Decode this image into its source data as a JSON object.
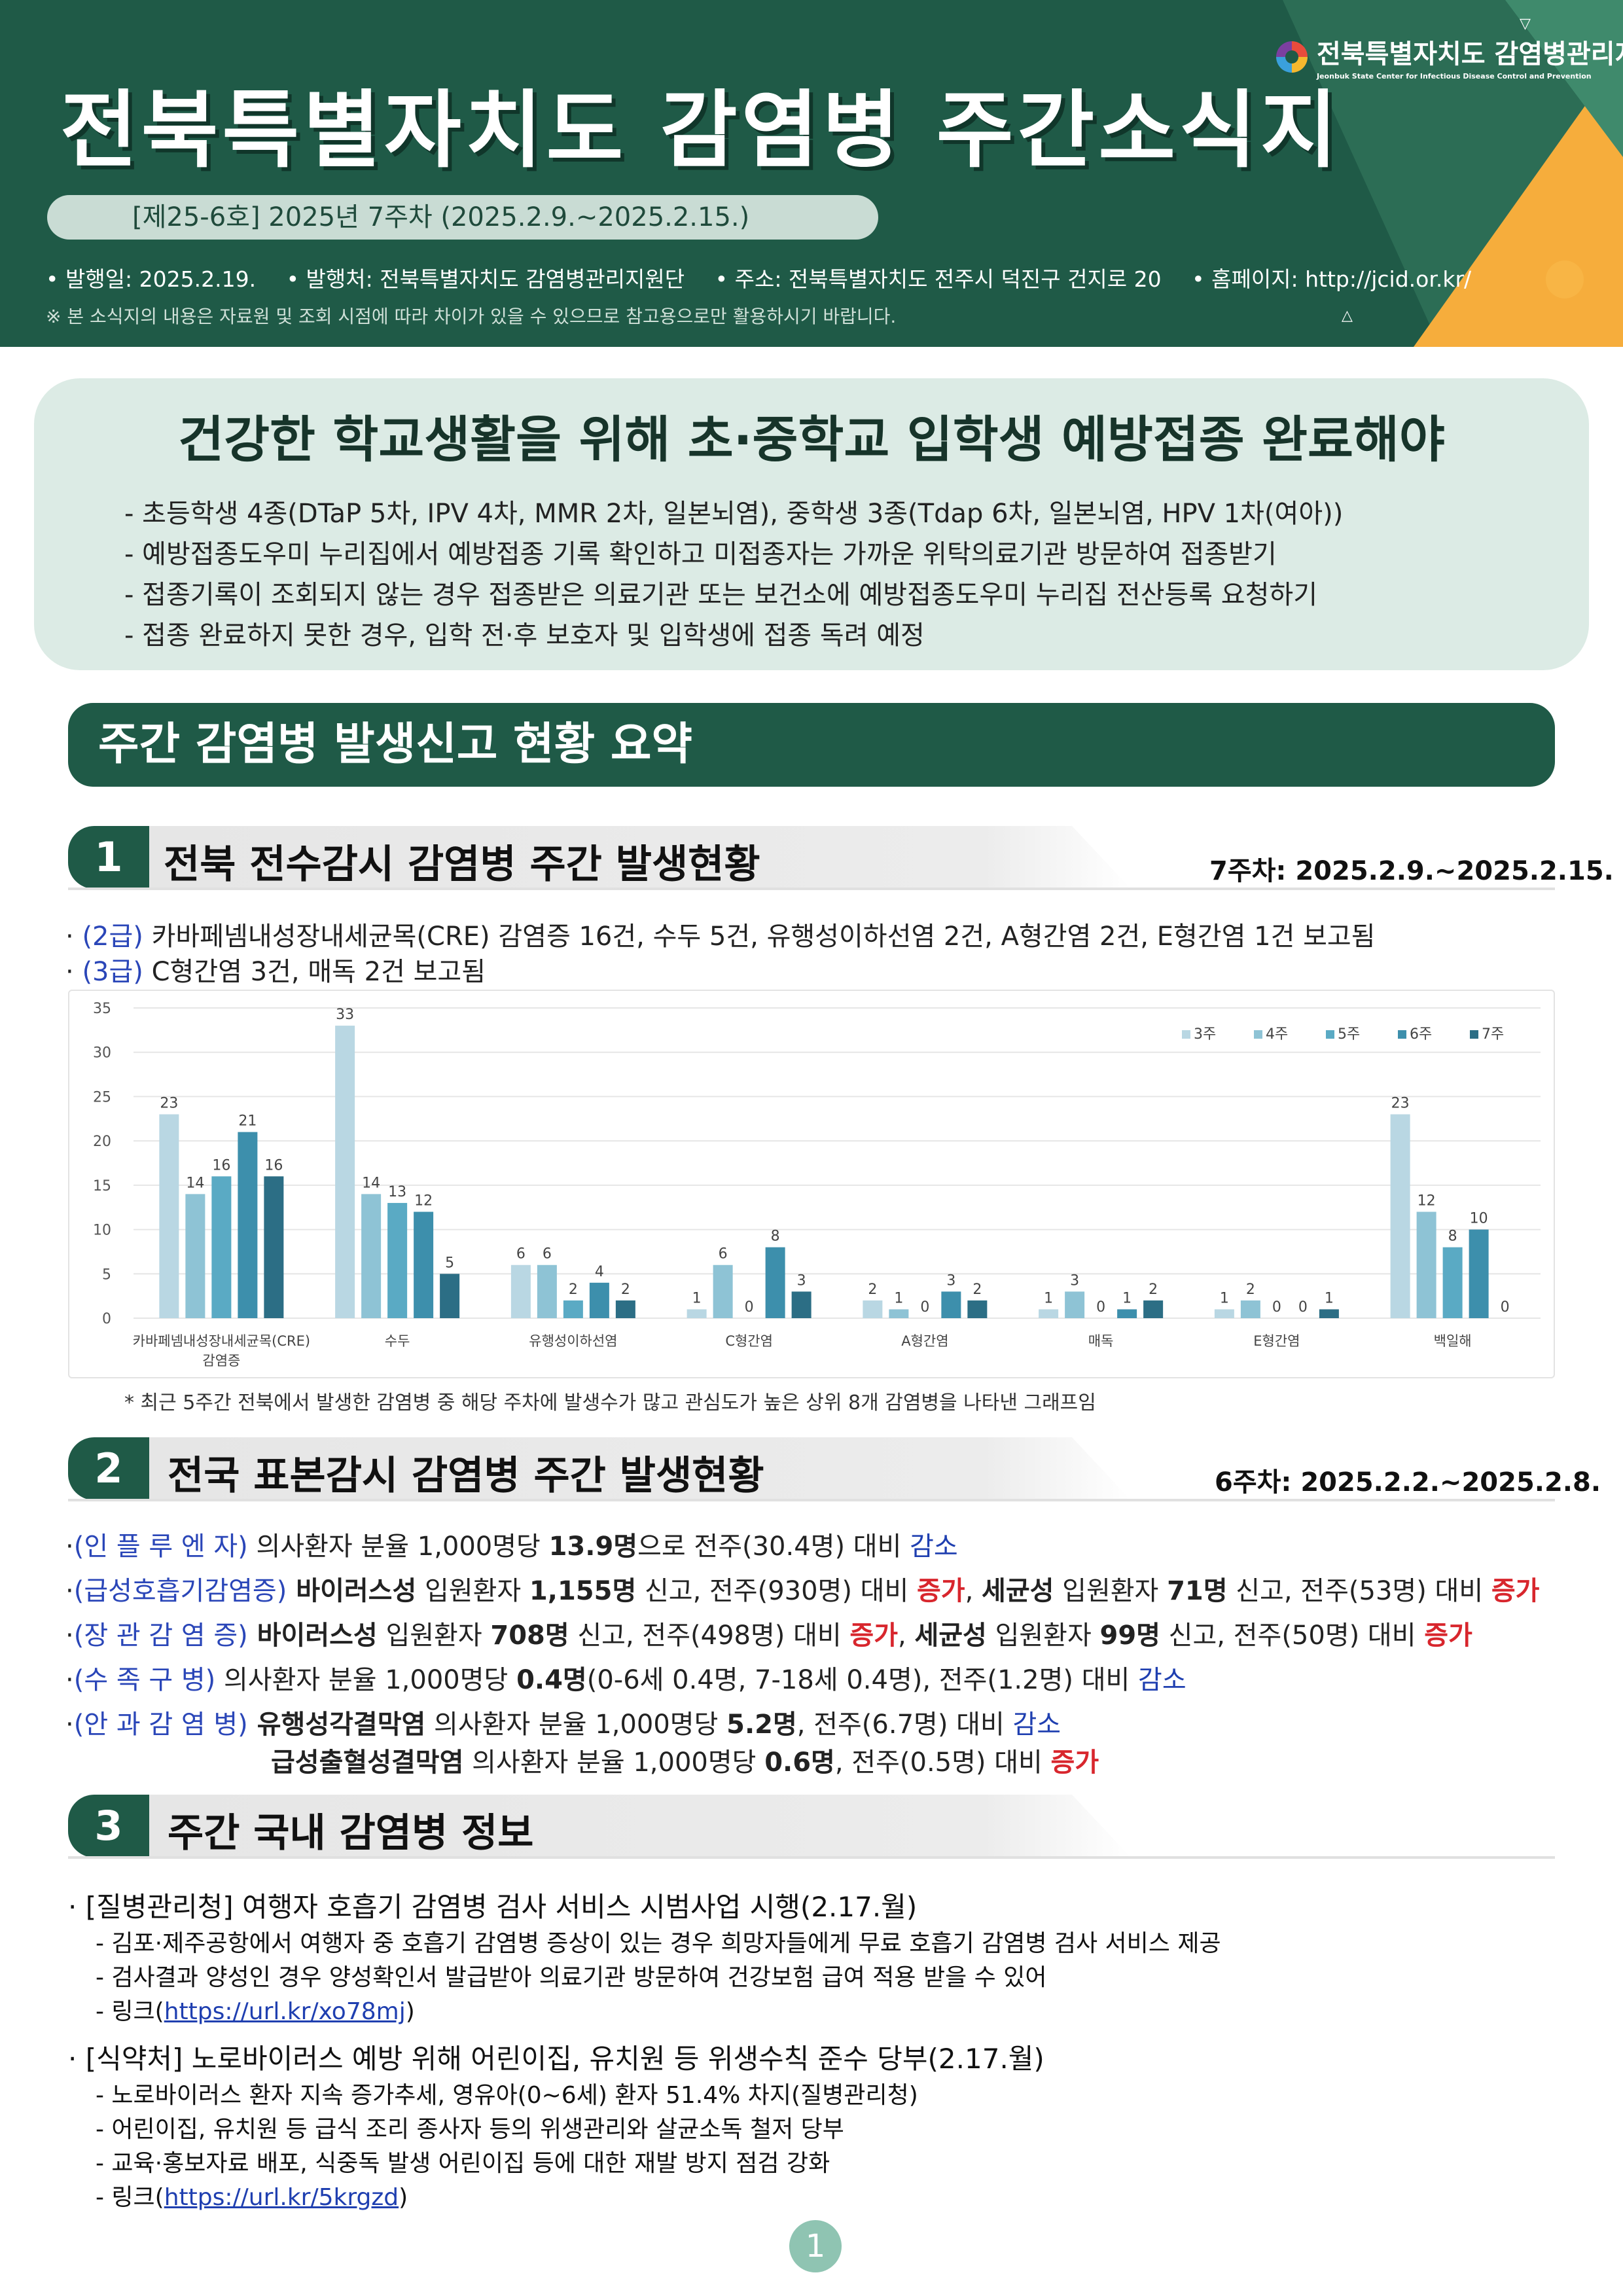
{
  "header": {
    "title": "전북특별자치도  감염병  주간소식지",
    "org_name": "전북특별자치도 감염병관리지원단",
    "org_name_en": "Jeonbuk State Center for Infectious Disease Control and Prevention",
    "issue": "[제25-6호] 2025년 7주차 (2025.2.9.~2025.2.15.)",
    "pub_date": "• 발행일: 2025.2.19.",
    "publisher": "• 발행처: 전북특별자치도 감염병관리지원단",
    "address": "• 주소: 전북특별자치도 전주시 덕진구 건지로 20",
    "homepage": "• 홈페이지: http://jcid.or.kr/",
    "note": "※ 본 소식지의 내용은 자료원 및 조회 시점에 따라 차이가 있을 수 있으므로 참고용으로만 활용하시기 바랍니다.",
    "colors": {
      "primary": "#1f5a47",
      "accent": "#f8b545"
    }
  },
  "highlight": {
    "title": "건강한 학교생활을 위해 초·중학교 입학생 예방접종 완료해야",
    "items": [
      "- 초등학생 4종(DTaP 5차, IPV 4차, MMR 2차, 일본뇌염), 중학생 3종(Tdap 6차, 일본뇌염, HPV 1차(여아))",
      "- 예방접종도우미 누리집에서 예방접종 기록 확인하고 미접종자는 가까운 위탁의료기관 방문하여 접종받기",
      "- 접종기록이 조회되지 않는 경우 접종받은 의료기관 또는 보건소에 예방접종도우미 누리집 전산등록 요청하기",
      "- 접종 완료하지 못한 경우, 입학 전·후 보호자 및 입학생에 접종 독려 예정"
    ]
  },
  "summary_title": "주간 감염병 발생신고 현황 요약",
  "section1": {
    "num": "1",
    "title": "전북 전수감시 감염병 주간 발생현황",
    "date": "7주차:  2025.2.9.~2025.2.15.",
    "line1_grade": "(2급)",
    "line1_text": " 카바페넴내성장내세균목(CRE) 감염증 16건, 수두 5건, 유행성이하선염 2건, A형간염 2건, E형간염 1건 보고됨",
    "line2_grade": "(3급)",
    "line2_text": " C형간염 3건, 매독 2건 보고됨",
    "chart_note": "* 최근 5주간 전북에서 발생한 감염병 중 해당 주차에 발생수가 많고 관심도가 높은 상위 8개 감염병을 나타낸 그래프임"
  },
  "chart_data": {
    "type": "bar",
    "categories": [
      "카바페넴내성장내세균목(CRE) 감염증",
      "수두",
      "유행성이하선염",
      "C형간염",
      "A형간염",
      "매독",
      "E형간염",
      "백일해"
    ],
    "category_lines": [
      [
        "카바페넴내성장내세균목(CRE)",
        "감염증"
      ],
      [
        "수두"
      ],
      [
        "유행성이하선염"
      ],
      [
        "C형간염"
      ],
      [
        "A형간염"
      ],
      [
        "매독"
      ],
      [
        "E형간염"
      ],
      [
        "백일해"
      ]
    ],
    "series": [
      {
        "name": "3주",
        "color": "#b9d7e3",
        "values": [
          23,
          33,
          6,
          1,
          2,
          1,
          1,
          23
        ]
      },
      {
        "name": "4주",
        "color": "#8ec3d5",
        "values": [
          14,
          14,
          6,
          6,
          1,
          3,
          2,
          12
        ]
      },
      {
        "name": "5주",
        "color": "#5aaac4",
        "values": [
          16,
          13,
          2,
          0,
          0,
          0,
          0,
          8
        ]
      },
      {
        "name": "6주",
        "color": "#3d8fac",
        "values": [
          21,
          12,
          4,
          8,
          3,
          1,
          0,
          10
        ]
      },
      {
        "name": "7주",
        "color": "#2c6e85",
        "values": [
          16,
          5,
          2,
          3,
          2,
          2,
          1,
          0
        ]
      }
    ],
    "yticks": [
      "0",
      "5",
      "10",
      "15",
      "20",
      "25",
      "30",
      "35"
    ],
    "ylim": [
      0,
      35
    ],
    "legend": "top-right",
    "grid": true
  },
  "section2": {
    "num": "2",
    "title": "전국 표본감시 감염병 주간 발생현황",
    "date": "6주차:  2025.2.2.~2025.2.8.",
    "rows": [
      {
        "label": "(인 플 루 엔 자)",
        "parts": [
          {
            "t": " 의사환자 분율 1,000명당 ",
            "s": ""
          },
          {
            "t": "13.9명",
            "s": "bold"
          },
          {
            "t": "으로 전주(30.4명) 대비 ",
            "s": ""
          },
          {
            "t": "감소",
            "s": "blue"
          }
        ]
      },
      {
        "label": "(급성호흡기감염증)",
        "parts": [
          {
            "t": " 바이러스성",
            "s": "bold"
          },
          {
            "t": " 입원환자 ",
            "s": ""
          },
          {
            "t": "1,155명",
            "s": "bold"
          },
          {
            "t": " 신고, 전주(930명) 대비 ",
            "s": ""
          },
          {
            "t": "증가",
            "s": "red"
          },
          {
            "t": ", ",
            "s": ""
          },
          {
            "t": "세균성",
            "s": "bold"
          },
          {
            "t": " 입원환자 ",
            "s": ""
          },
          {
            "t": "71명",
            "s": "bold"
          },
          {
            "t": " 신고, 전주(53명) 대비 ",
            "s": ""
          },
          {
            "t": "증가",
            "s": "red"
          }
        ]
      },
      {
        "label": "(장 관 감 염 증)",
        "parts": [
          {
            "t": " 바이러스성",
            "s": "bold"
          },
          {
            "t": " 입원환자 ",
            "s": ""
          },
          {
            "t": "708명",
            "s": "bold"
          },
          {
            "t": " 신고, 전주(498명) 대비 ",
            "s": ""
          },
          {
            "t": "증가",
            "s": "red"
          },
          {
            "t": ", ",
            "s": ""
          },
          {
            "t": "세균성",
            "s": "bold"
          },
          {
            "t": " 입원환자 ",
            "s": ""
          },
          {
            "t": "99명",
            "s": "bold"
          },
          {
            "t": " 신고, 전주(50명) 대비 ",
            "s": ""
          },
          {
            "t": "증가",
            "s": "red"
          }
        ]
      },
      {
        "label": "(수  족  구  병)",
        "parts": [
          {
            "t": " 의사환자 분율 1,000명당 ",
            "s": ""
          },
          {
            "t": "0.4명",
            "s": "bold"
          },
          {
            "t": "(0-6세 0.4명, 7-18세 0.4명), 전주(1.2명) 대비 ",
            "s": ""
          },
          {
            "t": "감소",
            "s": "blue"
          }
        ]
      },
      {
        "label": "(안 과 감 염 병)",
        "parts": [
          {
            "t": " 유행성각결막염",
            "s": "bold"
          },
          {
            "t": " 의사환자 분율 1,000명당 ",
            "s": ""
          },
          {
            "t": "5.2명",
            "s": "bold"
          },
          {
            "t": ", 전주(6.7명) 대비 ",
            "s": ""
          },
          {
            "t": "감소",
            "s": "blue"
          }
        ]
      },
      {
        "label": "",
        "parts": [
          {
            "t": "급성출혈성결막염",
            "s": "bold"
          },
          {
            "t": " 의사환자 분율 1,000명당 ",
            "s": ""
          },
          {
            "t": "0.6명",
            "s": "bold"
          },
          {
            "t": ", 전주(0.5명) 대비 ",
            "s": ""
          },
          {
            "t": "증가",
            "s": "red"
          }
        ]
      }
    ]
  },
  "section3": {
    "num": "3",
    "title": "주간 국내 감염병 정보",
    "news": [
      {
        "head": "· [질병관리청] 여행자 호흡기 감염병 검사 서비스 시범사업 시행(2.17.월)",
        "items": [
          "- 김포·제주공항에서 여행자 중 호흡기 감염병 증상이 있는 경우 희망자들에게 무료 호흡기 감염병 검사 서비스 제공",
          "- 검사결과 양성인 경우 양성확인서 발급받아 의료기관 방문하여 건강보험 급여 적용 받을 수 있어"
        ],
        "link_prefix": "- 링크(",
        "link": "https://url.kr/xo78mj",
        "link_suffix": ")"
      },
      {
        "head": "· [식약처] 노로바이러스 예방 위해 어린이집, 유치원 등 위생수칙 준수 당부(2.17.월)",
        "items": [
          "- 노로바이러스 환자 지속 증가추세, 영유아(0~6세) 환자 51.4% 차지(질병관리청)",
          "- 어린이집, 유치원 등 급식 조리 종사자 등의 위생관리와 살균소독 철저 당부",
          "- 교육·홍보자료 배포, 식중독 발생 어린이집 등에 대한 재발 방지 점검 강화"
        ],
        "link_prefix": "- 링크(",
        "link": "https://url.kr/5krgzd",
        "link_suffix": ")"
      }
    ]
  },
  "page_number": "1"
}
